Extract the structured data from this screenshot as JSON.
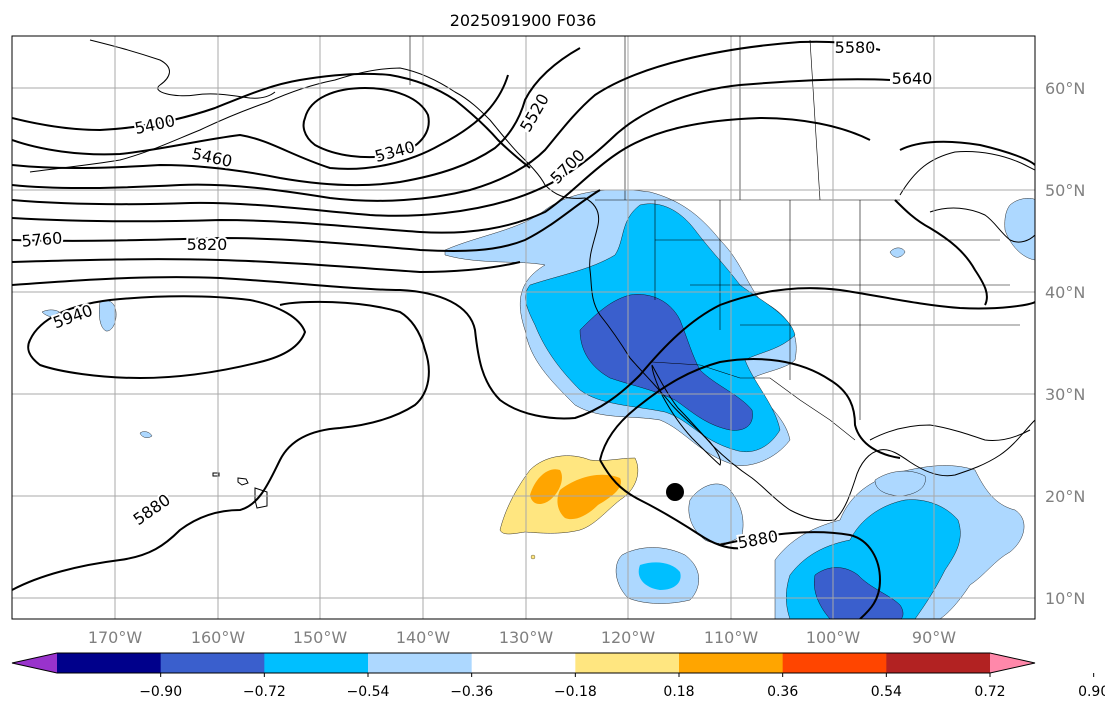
{
  "title": "2025091900 F036",
  "x_ticks": [
    "170°W",
    "160°W",
    "150°W",
    "140°W",
    "130°W",
    "120°W",
    "110°W",
    "100°W",
    "90°W"
  ],
  "y_ticks": [
    "60°N",
    "50°N",
    "40°N",
    "30°N",
    "20°N",
    "10°N"
  ],
  "colorbar": {
    "ticks": [
      "−0.90",
      "−0.72",
      "−0.54",
      "−0.36",
      "−0.18",
      "0.18",
      "0.36",
      "0.54",
      "0.72",
      "0.90"
    ],
    "colors": [
      "#9933cc",
      "#00008b",
      "#3a5fcd",
      "#00bfff",
      "#add8ff",
      "#ffffff",
      "#ffe680",
      "#ffa500",
      "#ff4500",
      "#b22222",
      "#ff88aa"
    ]
  },
  "contour_labels": [
    "5580",
    "5640",
    "5400",
    "5340",
    "5460",
    "5520",
    "5700",
    "5760",
    "5820",
    "5940",
    "5880",
    "5880"
  ]
}
